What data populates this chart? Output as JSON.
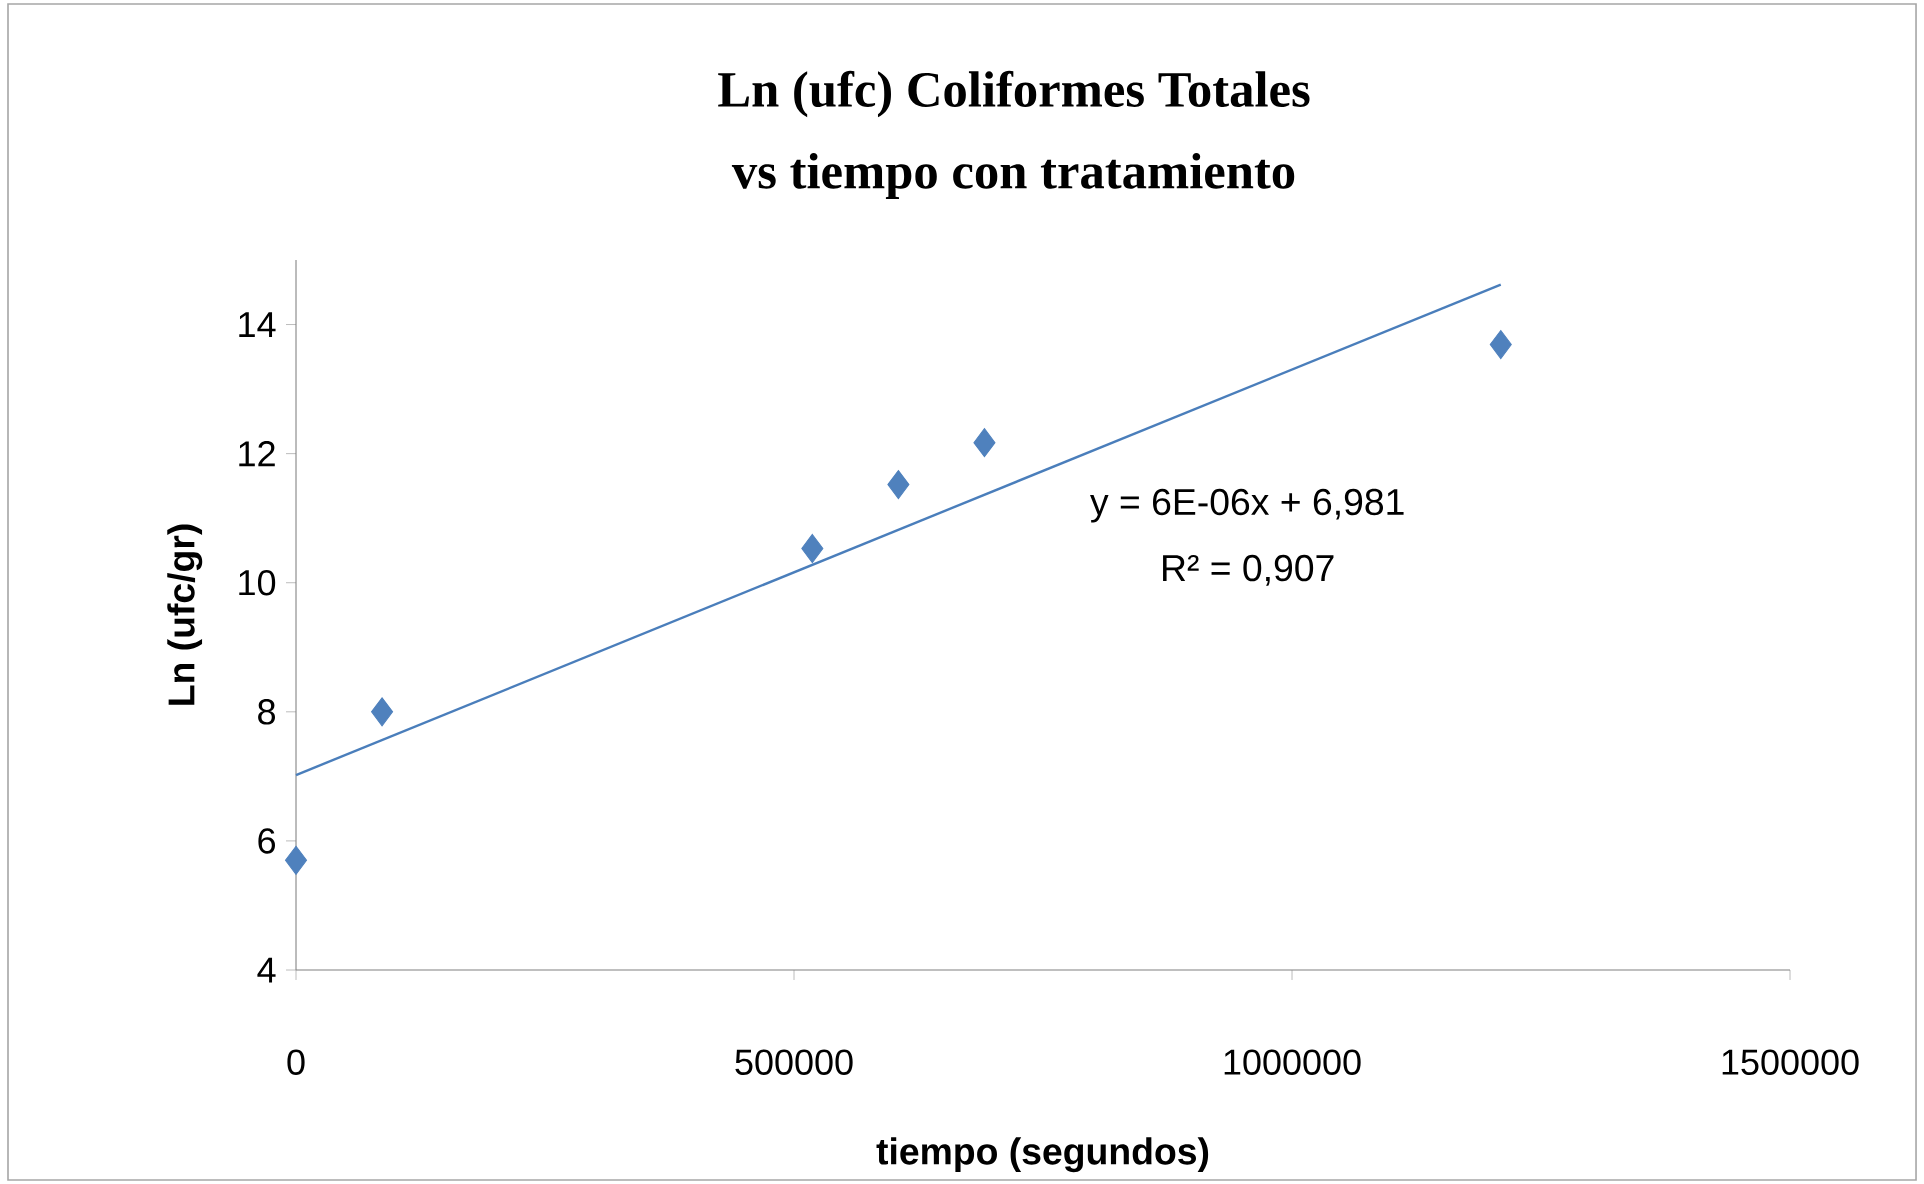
{
  "chart_data": {
    "type": "scatter",
    "title": "Ln (ufc) Coliformes Totales",
    "subtitle": "vs tiempo   con tratamiento",
    "xlabel": "tiempo (segundos)",
    "ylabel": "Ln (ufc/gr)",
    "xlim": [
      0,
      1500000
    ],
    "ylim": [
      4,
      15
    ],
    "xticks": [
      0,
      500000,
      1000000,
      1500000
    ],
    "yticks": [
      4,
      6,
      8,
      10,
      12,
      14
    ],
    "marker": "diamond",
    "grid": false,
    "series": [
      {
        "color": "#4f81bd",
        "x": [
          0,
          86400,
          518400,
          604800,
          691200,
          1209600
        ],
        "values": [
          5.7,
          8.0,
          10.53,
          11.52,
          12.17,
          13.69
        ]
      },
      {
        "type": "line",
        "color": "#4a7ebb",
        "marker": "none",
        "x": [
          0,
          1209600
        ],
        "values": [
          7.02,
          14.62
        ]
      }
    ],
    "annotations": [
      "y = 6E-06x + 6,981",
      "R² = 0,907"
    ]
  }
}
